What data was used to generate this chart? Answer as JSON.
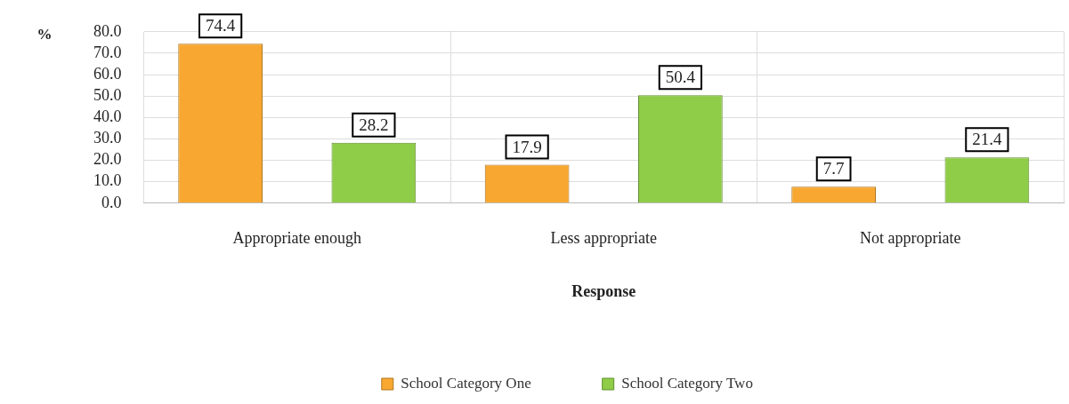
{
  "chart_data": {
    "type": "bar",
    "ylabel": "%",
    "xlabel": "Response",
    "categories": [
      "Appropriate enough",
      "Less appropriate",
      "Not appropriate"
    ],
    "series": [
      {
        "name": "School Category One",
        "color": "#f8a830",
        "values": [
          74.4,
          17.9,
          7.7
        ]
      },
      {
        "name": "School Category Two",
        "color": "#8fcc48",
        "values": [
          28.2,
          50.4,
          21.4
        ]
      }
    ],
    "ylim": [
      0,
      80
    ],
    "yticks": [
      {
        "value": 0,
        "label": "0.0"
      },
      {
        "value": 10,
        "label": "10.0"
      },
      {
        "value": 20,
        "label": "20.0"
      },
      {
        "value": 30,
        "label": "30.0"
      },
      {
        "value": 40,
        "label": "40.0"
      },
      {
        "value": 50,
        "label": "50.0"
      },
      {
        "value": 60,
        "label": "60.0"
      },
      {
        "value": 70,
        "label": "70.0"
      },
      {
        "value": 80,
        "label": "80.0"
      }
    ],
    "grid": true,
    "legend": "bottom",
    "data_labels": true
  }
}
